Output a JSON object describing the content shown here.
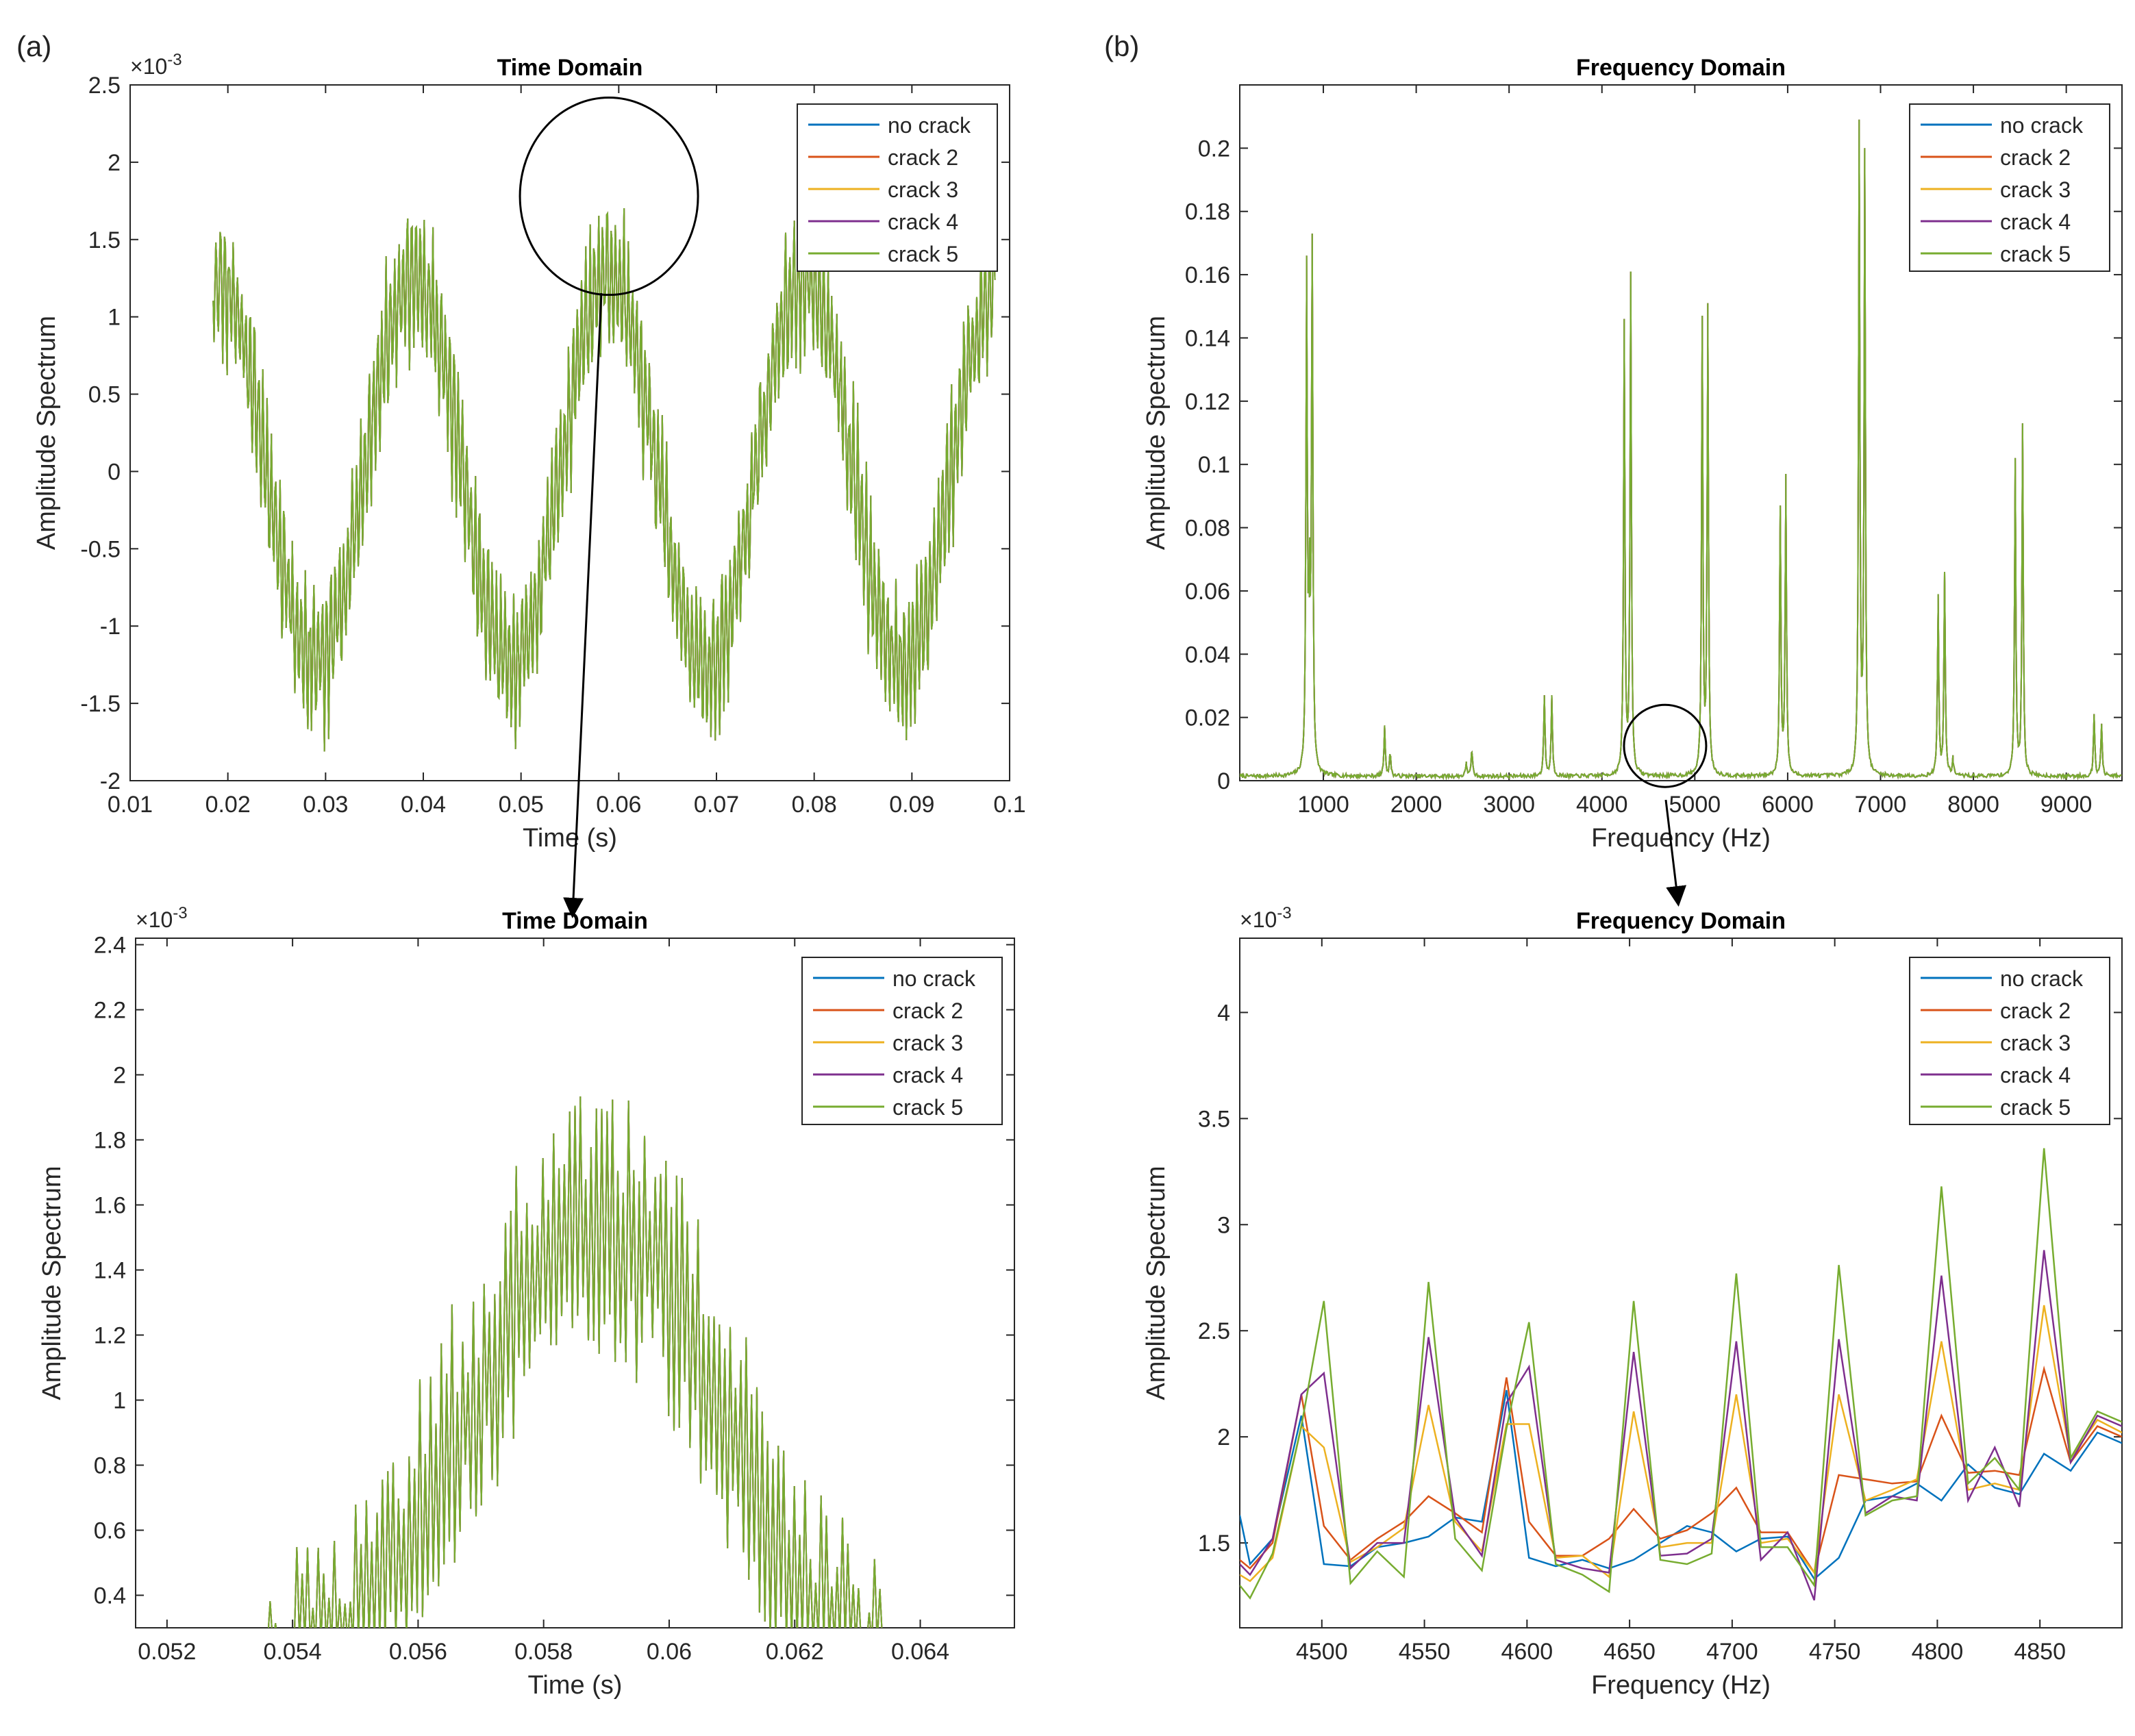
{
  "panel_labels": [
    "(a)",
    "(b)"
  ],
  "colors": {
    "no_crack": "#0072BD",
    "crack_2": "#D95319",
    "crack_3": "#EDB120",
    "crack_4": "#7E2F8E",
    "crack_5": "#77AC30"
  },
  "chart_data": [
    {
      "id": "time-full",
      "type": "line",
      "title": "Time Domain",
      "xlabel": "Time (s)",
      "ylabel": "Amplitude Spectrum",
      "exponent": "×10-3",
      "xlim": [
        0.01,
        0.1
      ],
      "ylim": [
        -2,
        2.5
      ],
      "xticks": [
        0.01,
        0.02,
        0.03,
        0.04,
        0.05,
        0.06,
        0.07,
        0.08,
        0.09,
        0.1
      ],
      "xticklabels": [
        "0.01",
        "0.02",
        "0.03",
        "0.04",
        "0.05",
        "0.06",
        "0.07",
        "0.08",
        "0.09",
        "0.1"
      ],
      "yticks": [
        -2,
        -1.5,
        -1,
        -0.5,
        0,
        0.5,
        1,
        1.5,
        2,
        2.5
      ],
      "yticklabels": [
        "-2",
        "-1.5",
        "-1",
        "-0.5",
        "0",
        "0.5",
        "1",
        "1.5",
        "2",
        "2.5"
      ],
      "legend": [
        "no crack",
        "crack 2",
        "crack 3",
        "crack 4",
        "crack 5"
      ],
      "legend_position": "top-right",
      "signal": {
        "t_start": 0.0185,
        "t_end": 0.0985,
        "mean": 0.0,
        "amplitude": 1.25,
        "period": 0.02,
        "peak_phase_t": 0.039,
        "ripple": 0.55,
        "samples": 900
      },
      "zoom_marker": {
        "center": [
          0.059,
          1.78
        ],
        "target": "time-zoom"
      }
    },
    {
      "id": "freq-full",
      "type": "line",
      "title": "Frequency Domain",
      "xlabel": "Frequency (Hz)",
      "ylabel": "Amplitude Spectrum",
      "xlim": [
        100,
        9600
      ],
      "ylim": [
        0,
        0.22
      ],
      "xticks": [
        1000,
        2000,
        3000,
        4000,
        5000,
        6000,
        7000,
        8000,
        9000
      ],
      "xticklabels": [
        "1000",
        "2000",
        "3000",
        "4000",
        "5000",
        "6000",
        "7000",
        "8000",
        "9000"
      ],
      "yticks": [
        0,
        0.02,
        0.04,
        0.06,
        0.08,
        0.1,
        0.12,
        0.14,
        0.16,
        0.18,
        0.2
      ],
      "yticklabels": [
        "0",
        "0.02",
        "0.04",
        "0.06",
        "0.08",
        "0.1",
        "0.12",
        "0.14",
        "0.16",
        "0.18",
        "0.2"
      ],
      "legend": [
        "no crack",
        "crack 2",
        "crack 3",
        "crack 4",
        "crack 5"
      ],
      "legend_position": "top-right",
      "peaks": [
        {
          "f": 820,
          "a": 0.166
        },
        {
          "f": 850,
          "a": 0.058
        },
        {
          "f": 880,
          "a": 0.173
        },
        {
          "f": 1660,
          "a": 0.017
        },
        {
          "f": 1720,
          "a": 0.008
        },
        {
          "f": 2540,
          "a": 0.005
        },
        {
          "f": 2600,
          "a": 0.009
        },
        {
          "f": 3380,
          "a": 0.027
        },
        {
          "f": 3460,
          "a": 0.027
        },
        {
          "f": 4240,
          "a": 0.146
        },
        {
          "f": 4310,
          "a": 0.161
        },
        {
          "f": 5080,
          "a": 0.147
        },
        {
          "f": 5140,
          "a": 0.151
        },
        {
          "f": 5920,
          "a": 0.087
        },
        {
          "f": 5980,
          "a": 0.097
        },
        {
          "f": 6770,
          "a": 0.209
        },
        {
          "f": 6830,
          "a": 0.2
        },
        {
          "f": 7620,
          "a": 0.059
        },
        {
          "f": 7690,
          "a": 0.066
        },
        {
          "f": 7780,
          "a": 0.006
        },
        {
          "f": 8450,
          "a": 0.102
        },
        {
          "f": 8530,
          "a": 0.113
        },
        {
          "f": 9300,
          "a": 0.021
        },
        {
          "f": 9380,
          "a": 0.018
        }
      ],
      "zoom_marker": {
        "center": [
          4680,
          0.011
        ],
        "target": "freq-zoom"
      }
    },
    {
      "id": "time-zoom",
      "type": "line",
      "title": "Time Domain",
      "xlabel": "Time (s)",
      "ylabel": "Amplitude Spectrum",
      "exponent": "×10-3",
      "xlim": [
        0.0515,
        0.0655
      ],
      "ylim": [
        0.3,
        2.42
      ],
      "xticks": [
        0.052,
        0.054,
        0.056,
        0.058,
        0.06,
        0.062,
        0.064
      ],
      "xticklabels": [
        "0.052",
        "0.054",
        "0.056",
        "0.058",
        "0.06",
        "0.062",
        "0.064"
      ],
      "yticks": [
        0.4,
        0.6,
        0.8,
        1,
        1.2,
        1.4,
        1.6,
        1.8,
        2,
        2.2,
        2.4
      ],
      "yticklabels": [
        "0.4",
        "0.6",
        "0.8",
        "1",
        "1.2",
        "1.4",
        "1.6",
        "1.8",
        "2",
        "2.2",
        "2.4"
      ],
      "legend": [
        "no crack",
        "crack 2",
        "crack 3",
        "crack 4",
        "crack 5"
      ],
      "legend_position": "top-right",
      "signal": {
        "t_start": 0.0536,
        "t_end": 0.0634,
        "center": 0.0588,
        "peak": 1.55,
        "spread": 0.0029,
        "ripple": 0.45,
        "samples": 230
      }
    },
    {
      "id": "freq-zoom",
      "type": "line",
      "title": "Frequency Domain",
      "xlabel": "Frequency (Hz)",
      "ylabel": "Amplitude Spectrum",
      "exponent": "×10-3",
      "xlim": [
        4460,
        4890
      ],
      "ylim": [
        1.1,
        4.35
      ],
      "xticks": [
        4500,
        4550,
        4600,
        4650,
        4700,
        4750,
        4800,
        4850
      ],
      "xticklabels": [
        "4500",
        "4550",
        "4600",
        "4650",
        "4700",
        "4750",
        "4800",
        "4850"
      ],
      "yticks": [
        1.5,
        2,
        2.5,
        3,
        3.5,
        4
      ],
      "yticklabels": [
        "1.5",
        "2",
        "2.5",
        "3",
        "3.5",
        "4"
      ],
      "legend": [
        "no crack",
        "crack 2",
        "crack 3",
        "crack 4",
        "crack 5"
      ],
      "legend_position": "top-right",
      "x": [
        4460,
        4465,
        4476,
        4490,
        4501,
        4514,
        4527,
        4540,
        4552,
        4565,
        4578,
        4590,
        4601,
        4614,
        4627,
        4640,
        4652,
        4665,
        4678,
        4690,
        4702,
        4714,
        4727,
        4740,
        4752,
        4765,
        4778,
        4790,
        4802,
        4815,
        4828,
        4840,
        4852,
        4865,
        4878,
        4890
      ],
      "series": [
        {
          "name": "no crack",
          "values": [
            1.63,
            1.4,
            1.52,
            2.1,
            1.4,
            1.39,
            1.48,
            1.5,
            1.53,
            1.62,
            1.6,
            2.22,
            1.43,
            1.39,
            1.42,
            1.38,
            1.42,
            1.5,
            1.58,
            1.55,
            1.46,
            1.52,
            1.53,
            1.33,
            1.43,
            1.7,
            1.72,
            1.78,
            1.7,
            1.87,
            1.76,
            1.73,
            1.92,
            1.84,
            2.02,
            1.97
          ]
        },
        {
          "name": "crack 2",
          "values": [
            1.42,
            1.38,
            1.5,
            2.2,
            1.58,
            1.42,
            1.52,
            1.6,
            1.72,
            1.64,
            1.55,
            2.28,
            1.6,
            1.44,
            1.44,
            1.52,
            1.66,
            1.52,
            1.56,
            1.64,
            1.76,
            1.55,
            1.55,
            1.36,
            1.82,
            1.8,
            1.78,
            1.79,
            2.1,
            1.83,
            1.84,
            1.82,
            2.32,
            1.88,
            2.05,
            2.0
          ]
        },
        {
          "name": "crack 3",
          "values": [
            1.35,
            1.32,
            1.43,
            2.05,
            1.95,
            1.41,
            1.48,
            1.57,
            2.15,
            1.6,
            1.46,
            2.06,
            2.06,
            1.43,
            1.44,
            1.34,
            2.12,
            1.48,
            1.5,
            1.5,
            2.2,
            1.5,
            1.52,
            1.36,
            2.2,
            1.7,
            1.75,
            1.8,
            2.45,
            1.75,
            1.78,
            1.75,
            2.62,
            1.9,
            2.08,
            2.02
          ]
        },
        {
          "name": "crack 4",
          "values": [
            1.4,
            1.35,
            1.52,
            2.2,
            2.3,
            1.38,
            1.5,
            1.5,
            2.47,
            1.62,
            1.44,
            2.16,
            2.33,
            1.42,
            1.38,
            1.36,
            2.4,
            1.44,
            1.45,
            1.52,
            2.45,
            1.42,
            1.55,
            1.23,
            2.46,
            1.64,
            1.72,
            1.7,
            2.76,
            1.7,
            1.95,
            1.67,
            2.88,
            1.88,
            2.1,
            2.05
          ]
        },
        {
          "name": "crack 5",
          "values": [
            1.3,
            1.24,
            1.45,
            2.05,
            2.64,
            1.31,
            1.46,
            1.34,
            2.73,
            1.52,
            1.37,
            2.04,
            2.54,
            1.4,
            1.35,
            1.27,
            2.64,
            1.42,
            1.4,
            1.45,
            2.77,
            1.48,
            1.48,
            1.3,
            2.81,
            1.63,
            1.7,
            1.72,
            3.18,
            1.78,
            1.9,
            1.75,
            3.36,
            1.9,
            2.12,
            2.07
          ]
        }
      ]
    }
  ]
}
